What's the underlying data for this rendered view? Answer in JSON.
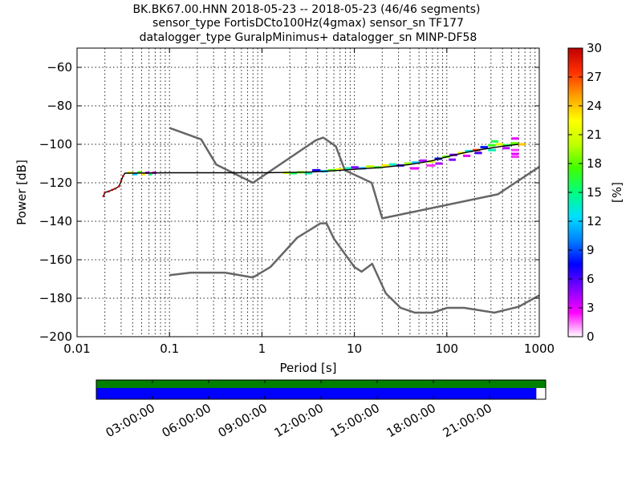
{
  "chart_data": {
    "type": "heatmap",
    "title_lines": [
      "BK.BK67.00.HNN   2018-05-23 -- 2018-05-23  (46/46 segments)",
      "sensor_type FortisDCto100Hz(4gmax) sensor_sn TF177",
      "datalogger_type GuralpMinimus+ datalogger_sn MINP-DF58"
    ],
    "xlabel": "Period [s]",
    "ylabel": "Power [dB]",
    "x_scale": "log",
    "xlim": [
      0.01,
      1000
    ],
    "ylim": [
      -200,
      -50
    ],
    "x_ticks": [
      {
        "value": 0.01,
        "label": "0.01"
      },
      {
        "value": 0.1,
        "label": "0.1"
      },
      {
        "value": 1,
        "label": "1"
      },
      {
        "value": 10,
        "label": "10"
      },
      {
        "value": 100,
        "label": "100"
      },
      {
        "value": 1000,
        "label": "1000"
      }
    ],
    "y_ticks": [
      {
        "value": -60,
        "label": "−60"
      },
      {
        "value": -80,
        "label": "−80"
      },
      {
        "value": -100,
        "label": "−100"
      },
      {
        "value": -120,
        "label": "−120"
      },
      {
        "value": -140,
        "label": "−140"
      },
      {
        "value": -160,
        "label": "−160"
      },
      {
        "value": -180,
        "label": "−180"
      },
      {
        "value": -200,
        "label": "−200"
      }
    ],
    "grid": true,
    "colorbar": {
      "label": "[%]",
      "range": [
        0,
        30
      ],
      "ticks": [
        {
          "value": 0,
          "label": "0"
        },
        {
          "value": 3,
          "label": "3"
        },
        {
          "value": 6,
          "label": "6"
        },
        {
          "value": 9,
          "label": "9"
        },
        {
          "value": 12,
          "label": "12"
        },
        {
          "value": 15,
          "label": "15"
        },
        {
          "value": 18,
          "label": "18"
        },
        {
          "value": 21,
          "label": "21"
        },
        {
          "value": 24,
          "label": "24"
        },
        {
          "value": 27,
          "label": "27"
        },
        {
          "value": 30,
          "label": "30"
        }
      ],
      "colors": [
        "#ffffff",
        "#ff00ff",
        "#8000ff",
        "#0000ff",
        "#0080ff",
        "#00e0ff",
        "#00ff80",
        "#40ff00",
        "#c0ff00",
        "#ffff00",
        "#ffa000",
        "#ff3000",
        "#c00000"
      ]
    },
    "noise_models": [
      {
        "name": "high-noise-model",
        "color": "#666666",
        "points": [
          [
            0.1,
            -91.5
          ],
          [
            0.22,
            -97.4
          ],
          [
            0.32,
            -110.5
          ],
          [
            0.8,
            -120
          ],
          [
            3.8,
            -98
          ],
          [
            4.6,
            -96.5
          ],
          [
            6.3,
            -101
          ],
          [
            7.9,
            -113.5
          ],
          [
            15.4,
            -120
          ],
          [
            20,
            -138.5
          ],
          [
            354.8,
            -126
          ],
          [
            10000,
            -80
          ]
        ]
      },
      {
        "name": "low-noise-model",
        "color": "#666666",
        "points": [
          [
            0.1,
            -168
          ],
          [
            0.17,
            -166.7
          ],
          [
            0.4,
            -166.7
          ],
          [
            0.8,
            -169.2
          ],
          [
            1.24,
            -163.7
          ],
          [
            2.4,
            -148.6
          ],
          [
            4.3,
            -141.1
          ],
          [
            5,
            -141.1
          ],
          [
            6,
            -149
          ],
          [
            10,
            -163.8
          ],
          [
            12,
            -166.2
          ],
          [
            15.6,
            -162.1
          ],
          [
            21.9,
            -177.5
          ],
          [
            31.6,
            -185
          ],
          [
            45,
            -187.5
          ],
          [
            70,
            -187.5
          ],
          [
            101,
            -185
          ],
          [
            154,
            -185
          ],
          [
            328,
            -187.5
          ],
          [
            600,
            -184.4
          ],
          [
            10000,
            -151.9
          ]
        ]
      }
    ],
    "psd_mode": {
      "color": "#000000",
      "points": [
        [
          0.0193,
          -127
        ],
        [
          0.02,
          -125
        ],
        [
          0.022,
          -124.5
        ],
        [
          0.024,
          -123.7
        ],
        [
          0.026,
          -123
        ],
        [
          0.0285,
          -121.8
        ],
        [
          0.03,
          -119
        ],
        [
          0.0315,
          -116.5
        ],
        [
          0.033,
          -115
        ],
        [
          0.1,
          -114.8
        ],
        [
          1,
          -114.8
        ],
        [
          3,
          -114.5
        ],
        [
          5,
          -114
        ],
        [
          10,
          -113
        ],
        [
          20,
          -112
        ],
        [
          40,
          -110.5
        ],
        [
          70,
          -108.5
        ],
        [
          100,
          -106.5
        ],
        [
          150,
          -104.5
        ],
        [
          250,
          -102.5
        ],
        [
          400,
          -101
        ],
        [
          600,
          -100
        ]
      ]
    },
    "psd_cells": [
      {
        "period": [
          0.035,
          0.04
        ],
        "db": -114.8,
        "pct": 22
      },
      {
        "period": [
          0.04,
          0.045
        ],
        "db": -115.5,
        "pct": 12
      },
      {
        "period": [
          0.045,
          0.05
        ],
        "db": -114.5,
        "pct": 18
      },
      {
        "period": [
          0.05,
          0.055
        ],
        "db": -115.5,
        "pct": 23
      },
      {
        "period": [
          0.055,
          0.06
        ],
        "db": -114.8,
        "pct": 4
      },
      {
        "period": [
          0.06,
          0.065
        ],
        "db": -115.5,
        "pct": 15
      },
      {
        "period": [
          0.065,
          0.072
        ],
        "db": -114.8,
        "pct": 3
      },
      {
        "period": [
          1.7,
          2.0
        ],
        "db": -114.8,
        "pct": 21
      },
      {
        "period": [
          2.0,
          2.4
        ],
        "db": -115,
        "pct": 16
      },
      {
        "period": [
          2.4,
          2.9
        ],
        "db": -114.5,
        "pct": 19
      },
      {
        "period": [
          2.9,
          3.5
        ],
        "db": -115,
        "pct": 14
      },
      {
        "period": [
          3.5,
          4.3
        ],
        "db": -113.5,
        "pct": 7
      },
      {
        "period": [
          4.3,
          5.2
        ],
        "db": -114,
        "pct": 12
      },
      {
        "period": [
          5.2,
          6.3
        ],
        "db": -113.5,
        "pct": 18
      },
      {
        "period": [
          6.3,
          7.6
        ],
        "db": -113,
        "pct": 22
      },
      {
        "period": [
          7.6,
          9.2
        ],
        "db": -112.5,
        "pct": 14
      },
      {
        "period": [
          9.2,
          11.1
        ],
        "db": -112,
        "pct": 5
      },
      {
        "period": [
          11.1,
          13.4
        ],
        "db": -112.5,
        "pct": 11
      },
      {
        "period": [
          13.4,
          16.2
        ],
        "db": -111.5,
        "pct": 20
      },
      {
        "period": [
          16.2,
          19.6
        ],
        "db": -112,
        "pct": 17
      },
      {
        "period": [
          19.6,
          23.7
        ],
        "db": -111,
        "pct": 23
      },
      {
        "period": [
          23.7,
          28.6
        ],
        "db": -110.5,
        "pct": 14
      },
      {
        "period": [
          28.6,
          34.6
        ],
        "db": -111,
        "pct": 6
      },
      {
        "period": [
          34.6,
          41.8
        ],
        "db": -110,
        "pct": 19
      },
      {
        "period": [
          41.8,
          50.5
        ],
        "db": -109.5,
        "pct": 12
      },
      {
        "period": [
          50.5,
          61
        ],
        "db": -108.5,
        "pct": 4
      },
      {
        "period": [
          61,
          73.7
        ],
        "db": -109,
        "pct": 21
      },
      {
        "period": [
          73.7,
          89
        ],
        "db": -107.5,
        "pct": 8
      },
      {
        "period": [
          89,
          107
        ],
        "db": -106.5,
        "pct": 18
      },
      {
        "period": [
          107,
          130
        ],
        "db": -105.5,
        "pct": 5
      },
      {
        "period": [
          130,
          157
        ],
        "db": -104.5,
        "pct": 22
      },
      {
        "period": [
          157,
          190
        ],
        "db": -103.5,
        "pct": 13
      },
      {
        "period": [
          190,
          230
        ],
        "db": -103,
        "pct": 27
      },
      {
        "period": [
          230,
          278
        ],
        "db": -101.5,
        "pct": 8
      },
      {
        "period": [
          278,
          336
        ],
        "db": -100.5,
        "pct": 17
      },
      {
        "period": [
          336,
          406
        ],
        "db": -100,
        "pct": 21
      },
      {
        "period": [
          406,
          490
        ],
        "db": -100.5,
        "pct": 16
      },
      {
        "period": [
          490,
          592
        ],
        "db": -99.5,
        "pct": 18
      },
      {
        "period": [
          592,
          715
        ],
        "db": -100,
        "pct": 24
      },
      {
        "period": [
          40,
          50
        ],
        "db": -112.5,
        "pct": 3
      },
      {
        "period": [
          60,
          75
        ],
        "db": -111,
        "pct": 2
      },
      {
        "period": [
          75,
          90
        ],
        "db": -110,
        "pct": 4
      },
      {
        "period": [
          105,
          125
        ],
        "db": -108,
        "pct": 5
      },
      {
        "period": [
          150,
          180
        ],
        "db": -106,
        "pct": 3
      },
      {
        "period": [
          200,
          240
        ],
        "db": -104.5,
        "pct": 6
      },
      {
        "period": [
          280,
          340
        ],
        "db": -103,
        "pct": 14
      },
      {
        "period": [
          300,
          360
        ],
        "db": -98.5,
        "pct": 16
      },
      {
        "period": [
          400,
          480
        ],
        "db": -102,
        "pct": 4
      },
      {
        "period": [
          500,
          600
        ],
        "db": -97,
        "pct": 3
      },
      {
        "period": [
          500,
          600
        ],
        "db": -103,
        "pct": 2
      },
      {
        "period": [
          500,
          600
        ],
        "db": -105,
        "pct": 3
      },
      {
        "period": [
          500,
          600
        ],
        "db": -106.5,
        "pct": 2
      }
    ],
    "coverage": {
      "time_ticks": [
        "03:00:00",
        "06:00:00",
        "09:00:00",
        "12:00:00",
        "15:00:00",
        "18:00:00",
        "21:00:00"
      ],
      "time_tick_hours": [
        3,
        6,
        9,
        12,
        15,
        18,
        21
      ],
      "span_hours": 24,
      "data_coverage_color": "#0000ff",
      "data_coverage_end_hour": 23.5,
      "psd_coverage_color": "#008000",
      "psd_coverage_end_hour": 24
    }
  }
}
